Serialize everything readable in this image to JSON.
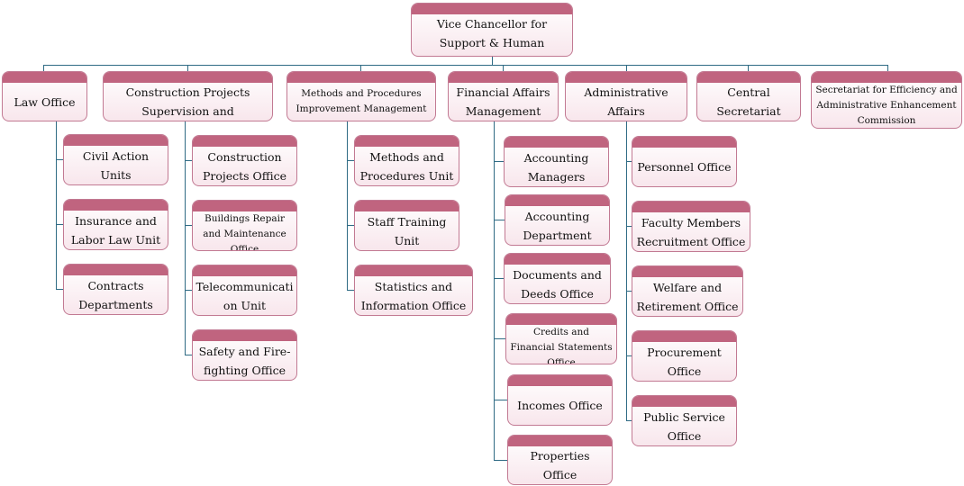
{
  "root": "Vice Chancellor for Support & Human Resources",
  "departments": [
    {
      "label": "Law Office",
      "children": [
        "Civil Action Units",
        "Insurance and Labor Law Unit",
        "Contracts Departments"
      ]
    },
    {
      "label": "Construction Projects Supervision and Management",
      "children": [
        "Construction Projects Office",
        "Buildings Repair and Maintenance Office",
        "Telecommunicati on Unit",
        "Safety and Fire-fighting Office"
      ]
    },
    {
      "label": "Methods and Procedures Improvement Management",
      "children": [
        "Methods and Procedures Unit",
        "Staff Training Unit",
        "Statistics and Information Office"
      ]
    },
    {
      "label": "Financial Affairs Management",
      "children": [
        "Accounting Managers",
        "Accounting Department",
        "Documents and Deeds Office",
        "Credits and Financial Statements Office",
        "Incomes Office",
        "Properties Office"
      ]
    },
    {
      "label": "Administrative Affairs Management",
      "children": [
        "Personnel Office",
        "Faculty Members Recruitment Office",
        "Welfare and Retirement Office",
        "Procurement Office",
        "Public Service Office"
      ]
    },
    {
      "label": "Central Secretariat",
      "children": []
    },
    {
      "label": "Secretariat for Efficiency and Administrative Enhancement Commission",
      "children": []
    }
  ],
  "colors": {
    "header": "#c0647f",
    "border": "#c27a93",
    "connector": "#2f6b84"
  }
}
